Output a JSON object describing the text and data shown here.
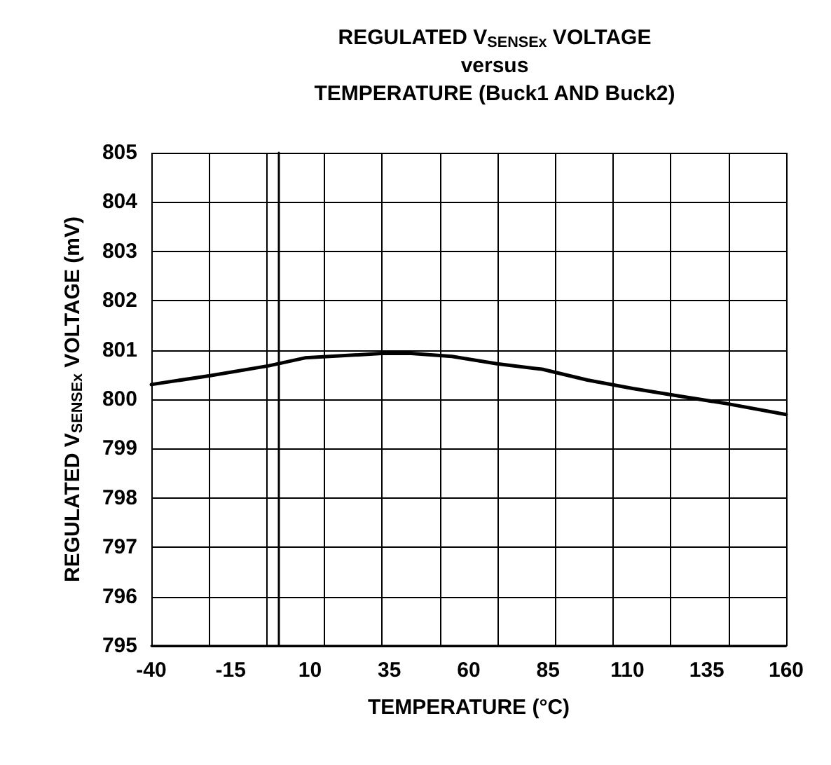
{
  "chart_data": {
    "type": "line",
    "title": "REGULATED V$_{SENSEx}$ VOLTAGE\nversus\nTEMPERATURE (Buck1 AND Buck2)",
    "xlabel": "TEMPERATURE (°C)",
    "ylabel": "REGULATED V$_{SENSEx}$ VOLTAGE (mV)",
    "series": [
      {
        "color": "#000000",
        "x": [
          -40,
          -21.5,
          -3,
          8.4,
          32.6,
          41.9,
          54.7,
          68.9,
          83.1,
          97.4,
          111.6,
          125.8,
          141.5,
          160
        ],
        "values": [
          800.3,
          800.48,
          800.68,
          800.84,
          800.93,
          800.93,
          800.87,
          800.72,
          800.61,
          800.39,
          800.22,
          800.07,
          799.91,
          799.69
        ]
      }
    ],
    "xlim": [
      -40,
      160
    ],
    "xticks": [
      -40,
      {
        "value": -21.8,
        "label": null
      },
      -15,
      {
        "value": -3.6,
        "label": null
      },
      10,
      {
        "value": 14.5,
        "label": null
      },
      {
        "value": 32.7,
        "label": null
      },
      35,
      {
        "value": 50.9,
        "label": null
      },
      60,
      {
        "value": 69.1,
        "label": null
      },
      85,
      {
        "value": 87.3,
        "label": null
      },
      {
        "value": 105.5,
        "label": null
      },
      110,
      {
        "value": 123.6,
        "label": null
      },
      135,
      {
        "value": 141.8,
        "label": null
      },
      160
    ],
    "ylim": [
      795,
      805
    ],
    "yticks": [
      795,
      796,
      797,
      798,
      799,
      800,
      801,
      802,
      803,
      804,
      805
    ],
    "grid": true,
    "marker": "none",
    "line_style": "solid"
  }
}
